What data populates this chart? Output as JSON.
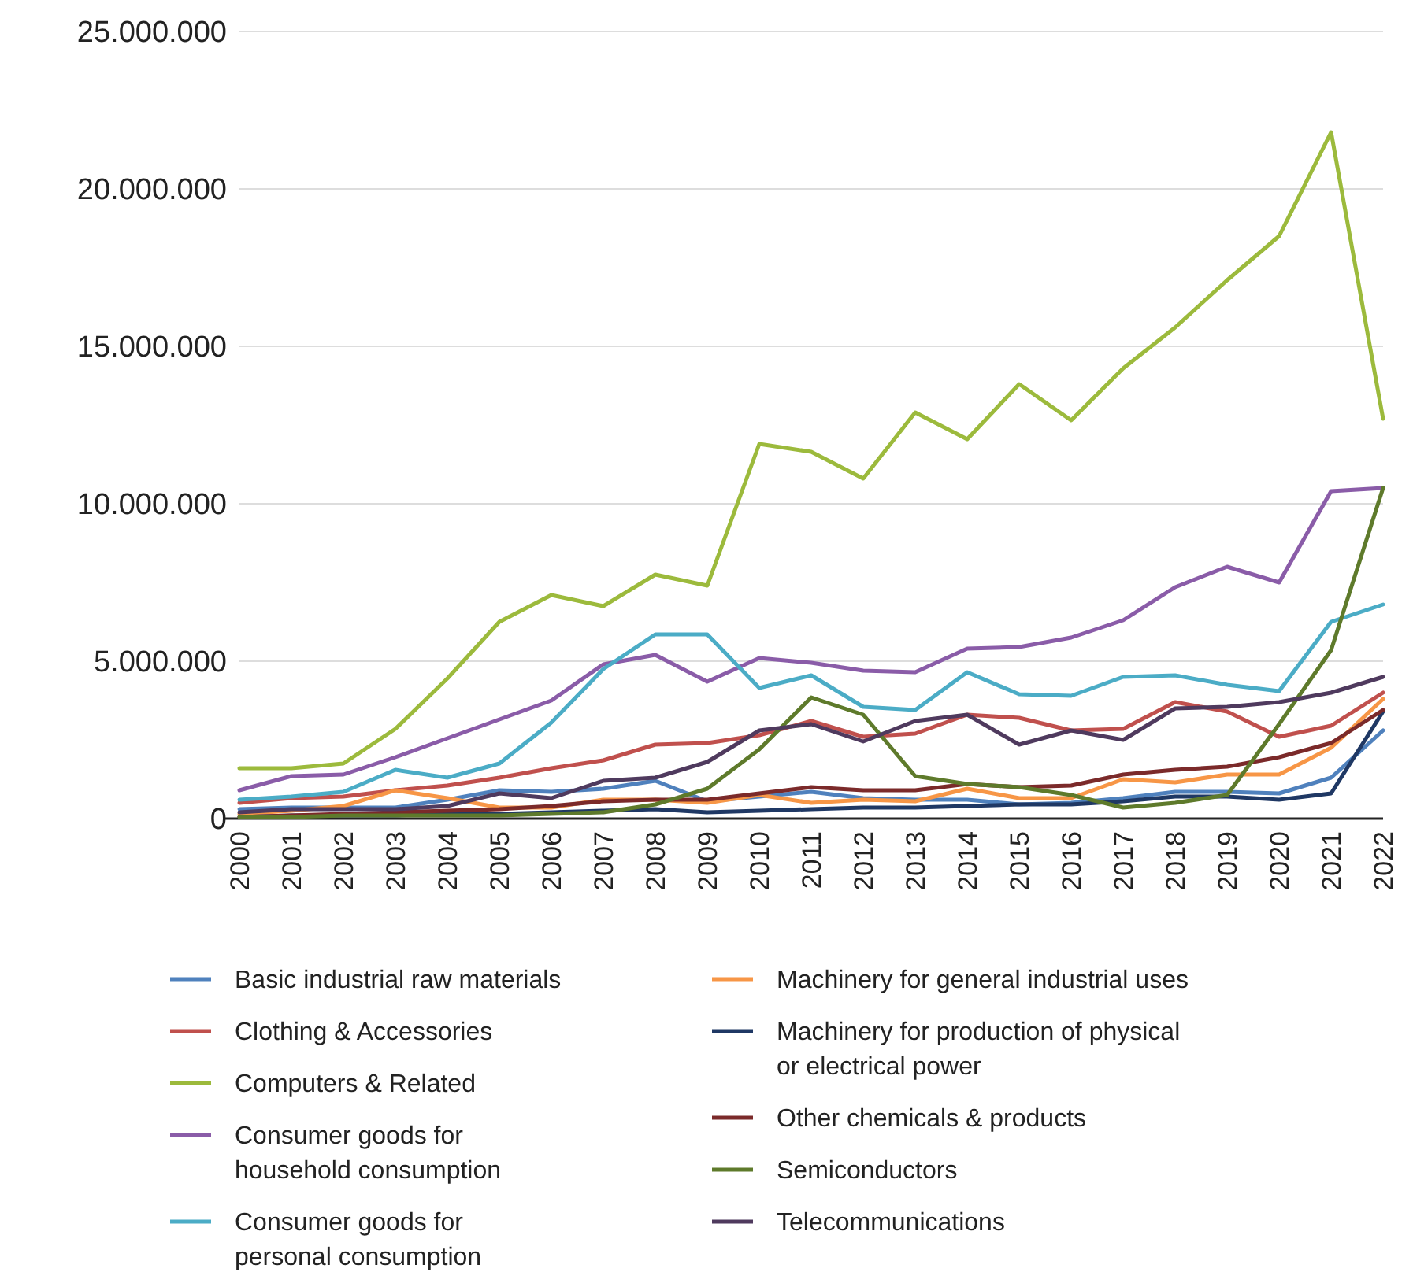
{
  "chart_data": {
    "type": "line",
    "categories": [
      "2000",
      "2001",
      "2002",
      "2003",
      "2004",
      "2005",
      "2006",
      "2007",
      "2008",
      "2009",
      "2010",
      "2011",
      "2012",
      "2013",
      "2014",
      "2015",
      "2016",
      "2017",
      "2018",
      "2019",
      "2020",
      "2021",
      "2022"
    ],
    "ylim": [
      0,
      25000000
    ],
    "yticks": [
      {
        "value": 0,
        "label": "0"
      },
      {
        "value": 5000000,
        "label": "5.000.000"
      },
      {
        "value": 10000000,
        "label": "10.000.000"
      },
      {
        "value": 15000000,
        "label": "15.000.000"
      },
      {
        "value": 20000000,
        "label": "20.000.000"
      },
      {
        "value": 25000000,
        "label": "25.000.000"
      }
    ],
    "grid": "y",
    "legend": "bottom",
    "marker": "none",
    "line_style": "solid",
    "series": [
      {
        "name": "Basic industrial raw materials",
        "color": "#4f81bd",
        "values": [
          300000,
          350000,
          350000,
          350000,
          600000,
          900000,
          850000,
          950000,
          1200000,
          550000,
          700000,
          850000,
          650000,
          600000,
          600000,
          450000,
          500000,
          650000,
          850000,
          850000,
          800000,
          1300000,
          2800000
        ]
      },
      {
        "name": "Clothing & Accessories",
        "color": "#c0504d",
        "values": [
          500000,
          650000,
          700000,
          900000,
          1050000,
          1300000,
          1600000,
          1850000,
          2350000,
          2400000,
          2650000,
          3100000,
          2600000,
          2700000,
          3300000,
          3200000,
          2800000,
          2850000,
          3700000,
          3400000,
          2600000,
          2950000,
          4000000
        ]
      },
      {
        "name": "Computers & Related",
        "color": "#9cba3c",
        "values": [
          1600000,
          1600000,
          1750000,
          2850000,
          4450000,
          6250000,
          7100000,
          6750000,
          7750000,
          7400000,
          11900000,
          11650000,
          10800000,
          12900000,
          12050000,
          13800000,
          12650000,
          14300000,
          15600000,
          17100000,
          18500000,
          21800000,
          12700000
        ]
      },
      {
        "name": "Consumer goods for household consumption",
        "color": "#8a5ca8",
        "values": [
          900000,
          1350000,
          1400000,
          1950000,
          2550000,
          3150000,
          3750000,
          4900000,
          5200000,
          4350000,
          5100000,
          4950000,
          4700000,
          4650000,
          5400000,
          5450000,
          5750000,
          6300000,
          7350000,
          8000000,
          7500000,
          10400000,
          10500000
        ]
      },
      {
        "name": "Consumer goods for personal consumption",
        "color": "#4bacc6",
        "values": [
          600000,
          700000,
          850000,
          1550000,
          1300000,
          1750000,
          3050000,
          4750000,
          5850000,
          5850000,
          4150000,
          4550000,
          3550000,
          3450000,
          4650000,
          3950000,
          3900000,
          4500000,
          4550000,
          4250000,
          4050000,
          6250000,
          6800000
        ]
      },
      {
        "name": "Machinery for general industrial uses",
        "color": "#f79646",
        "values": [
          150000,
          250000,
          400000,
          900000,
          650000,
          350000,
          350000,
          600000,
          600000,
          500000,
          750000,
          500000,
          600000,
          550000,
          950000,
          650000,
          650000,
          1250000,
          1150000,
          1400000,
          1400000,
          2250000,
          3800000
        ]
      },
      {
        "name": "Machinery for production of physical or electrical power",
        "color": "#1f3864",
        "values": [
          50000,
          100000,
          100000,
          100000,
          150000,
          150000,
          200000,
          250000,
          300000,
          200000,
          250000,
          300000,
          350000,
          350000,
          400000,
          450000,
          450000,
          550000,
          700000,
          700000,
          600000,
          800000,
          3400000
        ]
      },
      {
        "name": "Other chemicals & products",
        "color": "#7b2a2a",
        "values": [
          50000,
          100000,
          150000,
          200000,
          250000,
          300000,
          400000,
          550000,
          600000,
          600000,
          800000,
          1000000,
          900000,
          900000,
          1100000,
          1000000,
          1050000,
          1400000,
          1550000,
          1650000,
          1950000,
          2400000,
          3450000
        ]
      },
      {
        "name": "Semiconductors",
        "color": "#5e7a2b",
        "values": [
          50000,
          50000,
          100000,
          100000,
          100000,
          100000,
          150000,
          200000,
          450000,
          950000,
          2200000,
          3850000,
          3300000,
          1350000,
          1100000,
          1000000,
          750000,
          350000,
          500000,
          750000,
          3000000,
          5350000,
          10500000
        ]
      },
      {
        "name": "Telecommunications",
        "color": "#4f3a5e",
        "values": [
          200000,
          300000,
          300000,
          300000,
          400000,
          800000,
          650000,
          1200000,
          1300000,
          1800000,
          2800000,
          3000000,
          2450000,
          3100000,
          3300000,
          2350000,
          2800000,
          2500000,
          3500000,
          3550000,
          3700000,
          4000000,
          4500000
        ]
      }
    ]
  }
}
